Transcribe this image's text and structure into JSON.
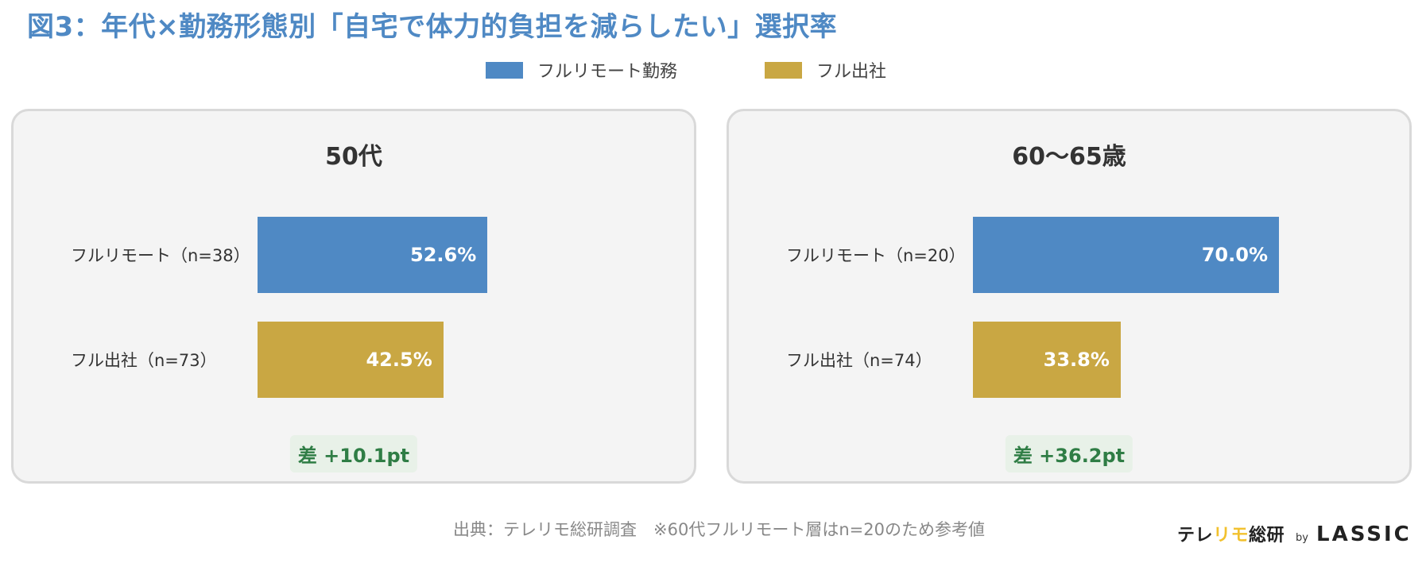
{
  "title": "図3：年代×勤務形態別「自宅で体力的負担を減らしたい」選択率",
  "legend": [
    {
      "label": "フルリモート勤務",
      "color": "#4f89c4"
    },
    {
      "label": "フル出社",
      "color": "#c9a743"
    }
  ],
  "chart_data": [
    {
      "type": "bar",
      "orientation": "horizontal",
      "title": "50代",
      "categories": [
        "フルリモート（n=38）",
        "フル出社（n=73）"
      ],
      "values": [
        52.6,
        42.5
      ],
      "value_labels": [
        "52.6%",
        "42.5%"
      ],
      "colors": [
        "#4f89c4",
        "#c9a743"
      ],
      "xlim": [
        0,
        100
      ],
      "annotation": "差 +10.1pt"
    },
    {
      "type": "bar",
      "orientation": "horizontal",
      "title": "60〜65歳",
      "categories": [
        "フルリモート（n=20）",
        "フル出社（n=74）"
      ],
      "values": [
        70.0,
        33.8
      ],
      "value_labels": [
        "70.0%",
        "33.8%"
      ],
      "colors": [
        "#4f89c4",
        "#c9a743"
      ],
      "xlim": [
        0,
        100
      ],
      "annotation": "差 +36.2pt"
    }
  ],
  "footer": {
    "source": "出典：テレリモ総研調査　※60代フルリモート層はn=20のため参考値",
    "logo_part1": "テレ",
    "logo_accent": "リモ",
    "logo_part2": "総研",
    "logo_by": "by",
    "logo_brand": "LASSIC"
  }
}
